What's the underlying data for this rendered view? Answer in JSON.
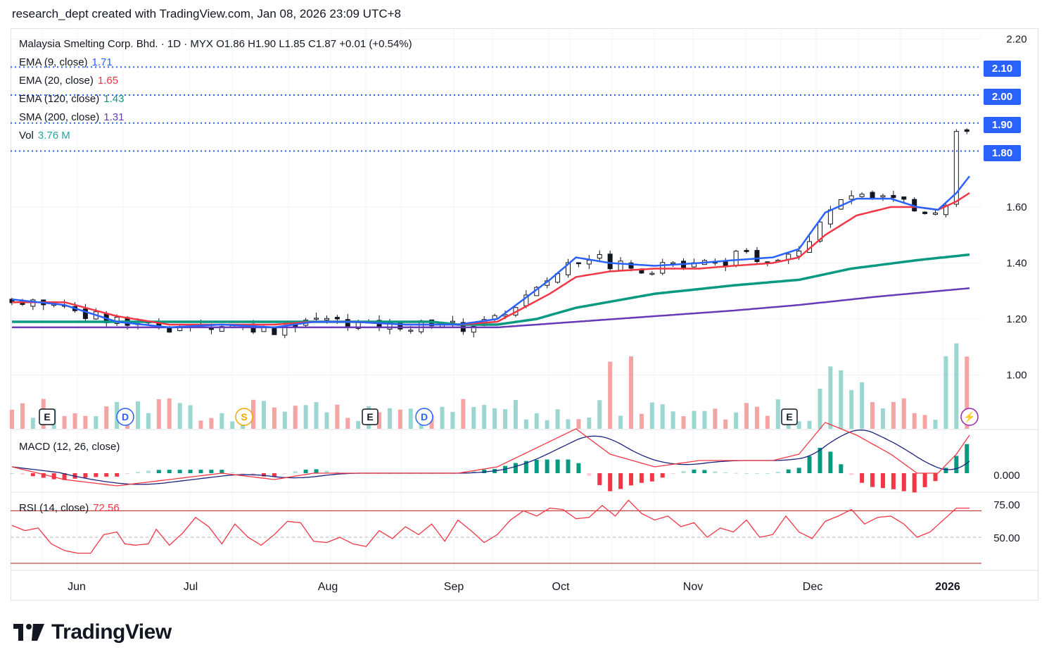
{
  "header": {
    "text": "research_dept created with TradingView.com, Jan 08, 2026 23:09 UTC+8"
  },
  "symbol_line": "Malaysia Smelting Corp. Bhd. · 1D · MYX  O1.86  H1.90  L1.85  C1.87  +0.01 (+0.54%)",
  "indicators": [
    {
      "label": "EMA (9, close)",
      "value": "1.71",
      "color": "#2962ff"
    },
    {
      "label": "EMA (20, close)",
      "value": "1.65",
      "color": "#f23645"
    },
    {
      "label": "EMA (120, close)",
      "value": "1.43",
      "color": "#089981"
    },
    {
      "label": "SMA (200, close)",
      "value": "1.31",
      "color": "#673ab7"
    },
    {
      "label": "Vol",
      "value": "3.76 M",
      "color": "#26a69a"
    }
  ],
  "price_badges": [
    "2.10",
    "2.00",
    "1.90",
    "1.80"
  ],
  "macd_label": "MACD (12, 26, close)",
  "rsi": {
    "label": "RSI (14, close)",
    "value": "72.56"
  },
  "footer": {
    "brand": "TradingView"
  },
  "chart_data": {
    "type": "candlestick",
    "price_axis": {
      "ticks": [
        "2.20",
        "1.60",
        "1.40",
        "1.20",
        "1.00"
      ],
      "range": [
        0.8,
        2.22
      ]
    },
    "macd_axis": {
      "ticks": [
        "0.000"
      ]
    },
    "rsi_axis": {
      "ticks": [
        "75.00",
        "50.00"
      ],
      "bands": [
        70,
        30
      ]
    },
    "x_labels": [
      "Jun",
      "Jul",
      "Aug",
      "Sep",
      "Oct",
      "Nov",
      "Dec",
      "2026"
    ],
    "horizontal_levels": [
      2.1,
      2.0,
      1.9,
      1.8
    ],
    "event_markers": [
      "E",
      "D",
      "S",
      "E",
      "D",
      "E",
      "⚡"
    ],
    "colors": {
      "up": "#26a69a",
      "down": "#ef5350",
      "level": "#2962ff"
    },
    "series_points": {
      "ema9": [
        [
          0,
          1.27
        ],
        [
          20,
          1.25
        ],
        [
          40,
          1.19
        ],
        [
          60,
          1.17
        ],
        [
          80,
          1.18
        ],
        [
          100,
          1.17
        ],
        [
          115,
          1.19
        ],
        [
          130,
          1.19
        ],
        [
          150,
          1.18
        ],
        [
          170,
          1.18
        ],
        [
          185,
          1.2
        ],
        [
          205,
          1.34
        ],
        [
          215,
          1.42
        ],
        [
          228,
          1.4
        ],
        [
          245,
          1.39
        ],
        [
          262,
          1.4
        ],
        [
          275,
          1.41
        ],
        [
          290,
          1.42
        ],
        [
          300,
          1.45
        ],
        [
          310,
          1.58
        ],
        [
          322,
          1.63
        ],
        [
          335,
          1.63
        ],
        [
          345,
          1.6
        ],
        [
          353,
          1.59
        ],
        [
          360,
          1.65
        ],
        [
          365,
          1.71
        ]
      ],
      "ema20": [
        [
          0,
          1.26
        ],
        [
          20,
          1.26
        ],
        [
          40,
          1.21
        ],
        [
          60,
          1.18
        ],
        [
          80,
          1.18
        ],
        [
          100,
          1.18
        ],
        [
          115,
          1.19
        ],
        [
          130,
          1.19
        ],
        [
          150,
          1.18
        ],
        [
          170,
          1.18
        ],
        [
          185,
          1.19
        ],
        [
          205,
          1.29
        ],
        [
          215,
          1.35
        ],
        [
          228,
          1.37
        ],
        [
          245,
          1.38
        ],
        [
          262,
          1.38
        ],
        [
          275,
          1.39
        ],
        [
          290,
          1.4
        ],
        [
          300,
          1.42
        ],
        [
          310,
          1.5
        ],
        [
          322,
          1.57
        ],
        [
          335,
          1.6
        ],
        [
          345,
          1.6
        ],
        [
          353,
          1.59
        ],
        [
          360,
          1.62
        ],
        [
          365,
          1.65
        ]
      ],
      "ema120": [
        [
          0,
          1.19
        ],
        [
          40,
          1.19
        ],
        [
          80,
          1.19
        ],
        [
          120,
          1.19
        ],
        [
          160,
          1.19
        ],
        [
          170,
          1.18
        ],
        [
          185,
          1.18
        ],
        [
          200,
          1.2
        ],
        [
          215,
          1.24
        ],
        [
          245,
          1.29
        ],
        [
          275,
          1.32
        ],
        [
          300,
          1.34
        ],
        [
          320,
          1.38
        ],
        [
          345,
          1.41
        ],
        [
          365,
          1.43
        ]
      ],
      "sma200": [
        [
          0,
          1.17
        ],
        [
          40,
          1.17
        ],
        [
          80,
          1.17
        ],
        [
          120,
          1.17
        ],
        [
          165,
          1.17
        ],
        [
          185,
          1.17
        ],
        [
          215,
          1.19
        ],
        [
          245,
          1.21
        ],
        [
          275,
          1.23
        ],
        [
          300,
          1.25
        ],
        [
          330,
          1.28
        ],
        [
          365,
          1.31
        ]
      ],
      "rsi": [
        [
          0,
          59
        ],
        [
          5,
          55
        ],
        [
          10,
          57
        ],
        [
          15,
          45
        ],
        [
          20,
          40
        ],
        [
          25,
          38
        ],
        [
          30,
          38
        ],
        [
          35,
          52
        ],
        [
          40,
          54
        ],
        [
          43,
          45
        ],
        [
          47,
          44
        ],
        [
          52,
          45
        ],
        [
          55,
          56
        ],
        [
          60,
          44
        ],
        [
          65,
          53
        ],
        [
          70,
          65
        ],
        [
          75,
          58
        ],
        [
          80,
          45
        ],
        [
          85,
          60
        ],
        [
          90,
          50
        ],
        [
          95,
          44
        ],
        [
          100,
          52
        ],
        [
          105,
          62
        ],
        [
          110,
          61
        ],
        [
          115,
          47
        ],
        [
          120,
          46
        ],
        [
          125,
          50
        ],
        [
          130,
          45
        ],
        [
          135,
          43
        ],
        [
          140,
          55
        ],
        [
          145,
          49
        ],
        [
          150,
          58
        ],
        [
          155,
          52
        ],
        [
          160,
          60
        ],
        [
          165,
          47
        ],
        [
          170,
          63
        ],
        [
          175,
          55
        ],
        [
          180,
          46
        ],
        [
          185,
          52
        ],
        [
          190,
          63
        ],
        [
          195,
          70
        ],
        [
          200,
          66
        ],
        [
          205,
          72
        ],
        [
          210,
          71
        ],
        [
          215,
          64
        ],
        [
          220,
          65
        ],
        [
          225,
          74
        ],
        [
          230,
          66
        ],
        [
          235,
          78
        ],
        [
          240,
          68
        ],
        [
          245,
          63
        ],
        [
          250,
          66
        ],
        [
          255,
          58
        ],
        [
          260,
          61
        ],
        [
          265,
          50
        ],
        [
          270,
          57
        ],
        [
          275,
          54
        ],
        [
          280,
          63
        ],
        [
          285,
          50
        ],
        [
          290,
          52
        ],
        [
          295,
          66
        ],
        [
          300,
          54
        ],
        [
          305,
          49
        ],
        [
          310,
          62
        ],
        [
          315,
          66
        ],
        [
          320,
          71
        ],
        [
          325,
          60
        ],
        [
          330,
          65
        ],
        [
          335,
          66
        ],
        [
          340,
          60
        ],
        [
          345,
          50
        ],
        [
          350,
          54
        ],
        [
          355,
          63
        ],
        [
          360,
          72
        ],
        [
          365,
          72
        ]
      ]
    }
  }
}
